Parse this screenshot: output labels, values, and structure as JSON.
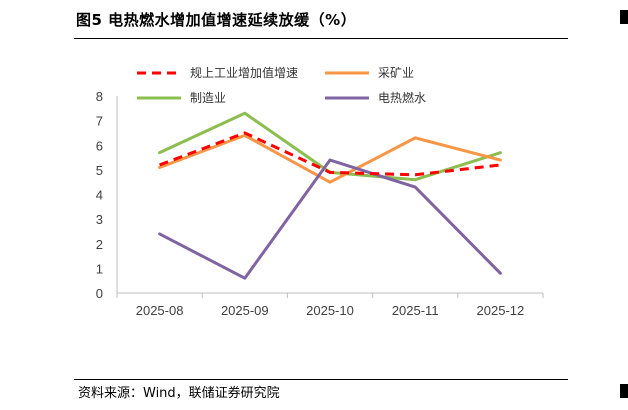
{
  "header": {
    "title": "图5  电热燃水增加值增速延续放缓（%）"
  },
  "footer": {
    "source": "资料来源：Wind，联储证券研究院"
  },
  "chart_data": {
    "type": "line",
    "title": "图5  电热燃水增加值增速延续放缓（%）",
    "categories": [
      "2025-08",
      "2025-09",
      "2025-10",
      "2025-11",
      "2025-12"
    ],
    "ylim": [
      0,
      8
    ],
    "yticks": [
      0,
      1,
      2,
      3,
      4,
      5,
      6,
      7,
      8
    ],
    "grid": false,
    "legend_position": "top",
    "series": [
      {
        "name": "规上工业增加值增速",
        "values": [
          5.2,
          6.5,
          4.9,
          4.8,
          5.2
        ],
        "color": "#ff0000",
        "dashed": true
      },
      {
        "name": "采矿业",
        "values": [
          5.1,
          6.4,
          4.5,
          6.3,
          5.4
        ],
        "color": "#f79646",
        "dashed": false
      },
      {
        "name": "制造业",
        "values": [
          5.7,
          7.3,
          4.9,
          4.6,
          5.7
        ],
        "color": "#8cbd4f",
        "dashed": false
      },
      {
        "name": "电热燃水",
        "values": [
          2.4,
          0.6,
          5.4,
          4.3,
          0.8
        ],
        "color": "#8064a2",
        "dashed": false
      }
    ]
  }
}
